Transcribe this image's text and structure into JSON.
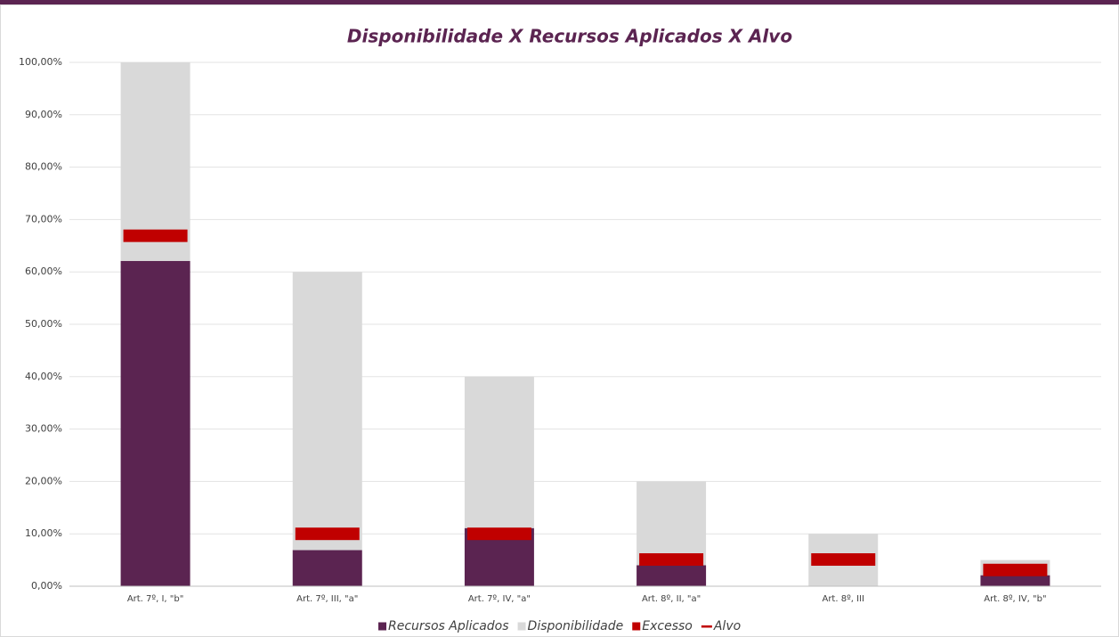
{
  "chart_data": {
    "type": "stacked_bar",
    "title": "Disponibilidade X Recursos Aplicados X Alvo",
    "categories": [
      "Art. 7º, I, \"b\"",
      "Art. 7º, III, \"a\"",
      "Art. 7º, IV, \"a\"",
      "Art. 8º, II, \"a\"",
      "Art. 8º, III",
      "Art. 8º, IV, \"b\""
    ],
    "series": [
      {
        "name": "Recursos Aplicados",
        "color": "#5b2451",
        "values": [
          62.1,
          6.9,
          11.1,
          4.0,
          0,
          2.1
        ]
      },
      {
        "name": "Disponibilidade",
        "color": "#d9d9d9",
        "values": [
          37.9,
          53.1,
          28.9,
          16.0,
          10,
          2.9
        ]
      },
      {
        "name": "Excesso",
        "color": "#c00000",
        "values": [
          0,
          0,
          0,
          0,
          0,
          0
        ]
      },
      {
        "name": "Alvo",
        "color": "#c00000",
        "type": "marker",
        "values": [
          66.9,
          10.0,
          10.0,
          5.1,
          5.1,
          3.1
        ]
      }
    ],
    "ylim": [
      0,
      100
    ],
    "yticks": [
      {
        "value": 0,
        "label": "0,00%"
      },
      {
        "value": 10,
        "label": "10,00%"
      },
      {
        "value": 20,
        "label": "20,00%"
      },
      {
        "value": 30,
        "label": "30,00%"
      },
      {
        "value": 40,
        "label": "40,00%"
      },
      {
        "value": 50,
        "label": "50,00%"
      },
      {
        "value": 60,
        "label": "60,00%"
      },
      {
        "value": 70,
        "label": "70,00%"
      },
      {
        "value": 80,
        "label": "80,00%"
      },
      {
        "value": 90,
        "label": "90,00%"
      },
      {
        "value": 100,
        "label": "100,00%"
      }
    ],
    "grid": true,
    "legend": "bottom"
  }
}
